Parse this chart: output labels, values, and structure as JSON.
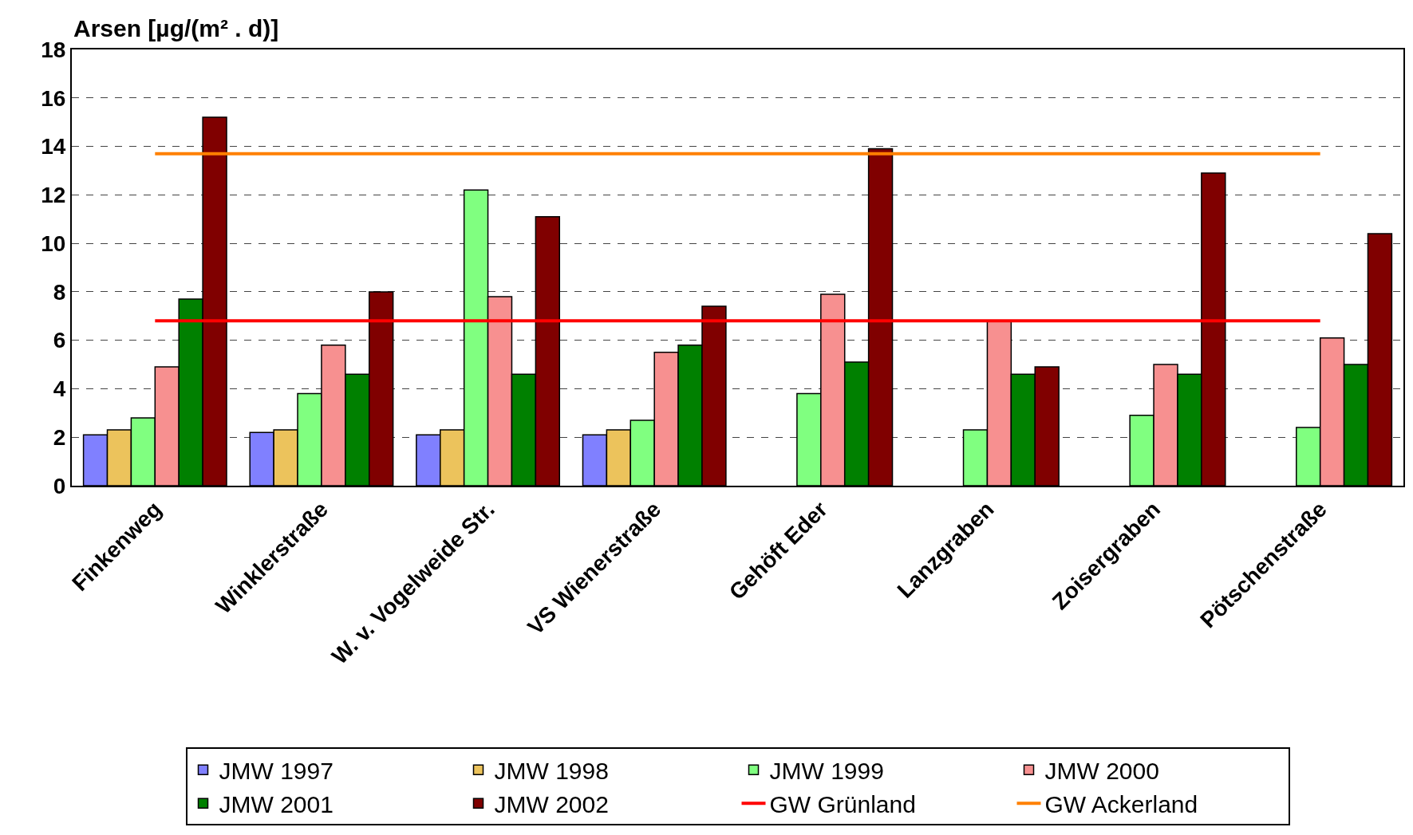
{
  "chart_data": {
    "type": "bar",
    "ylabel": "Arsen [µg/(m² . d)]",
    "categories": [
      "Finkenweg",
      "Winklerstraße",
      "W. v. Vogelweide Str.",
      "VS Wienerstraße",
      "Gehöft Eder",
      "Lanzgraben",
      "Zoisergraben",
      "Pötschenstraße"
    ],
    "series": [
      {
        "name": "JMW 1997",
        "color": "#8080ff",
        "values": [
          2.1,
          2.2,
          2.1,
          2.1,
          null,
          null,
          null,
          null
        ]
      },
      {
        "name": "JMW 1998",
        "color": "#ecc35c",
        "values": [
          2.3,
          2.3,
          2.3,
          2.3,
          null,
          null,
          null,
          null
        ]
      },
      {
        "name": "JMW 1999",
        "color": "#80ff80",
        "values": [
          2.8,
          3.8,
          12.2,
          2.7,
          3.8,
          2.3,
          2.9,
          2.4
        ]
      },
      {
        "name": "JMW 2000",
        "color": "#f79090",
        "values": [
          4.9,
          5.8,
          7.8,
          5.5,
          7.9,
          6.8,
          5.0,
          6.1
        ]
      },
      {
        "name": "JMW 2001",
        "color": "#008000",
        "values": [
          7.7,
          4.6,
          4.6,
          5.8,
          5.1,
          4.6,
          4.6,
          5.0
        ]
      },
      {
        "name": "JMW 2002",
        "color": "#800000",
        "values": [
          15.2,
          8.0,
          11.1,
          7.4,
          13.9,
          4.9,
          12.9,
          10.4
        ]
      },
      {
        "name": "GW Grünland",
        "type": "line",
        "color": "#ff0000",
        "values": [
          6.8,
          6.8,
          6.8,
          6.8,
          6.8,
          6.8,
          6.8,
          6.8
        ]
      },
      {
        "name": "GW Ackerland",
        "type": "line",
        "color": "#ff8000",
        "values": [
          13.7,
          13.7,
          13.7,
          13.7,
          13.7,
          13.7,
          13.7,
          13.7
        ]
      }
    ],
    "ylim": [
      0,
      18
    ],
    "yticks": [
      0,
      2,
      4,
      6,
      8,
      10,
      12,
      14,
      16,
      18
    ],
    "grid": "y",
    "legend": "bottom",
    "marker": "none",
    "line_style": "solid"
  }
}
